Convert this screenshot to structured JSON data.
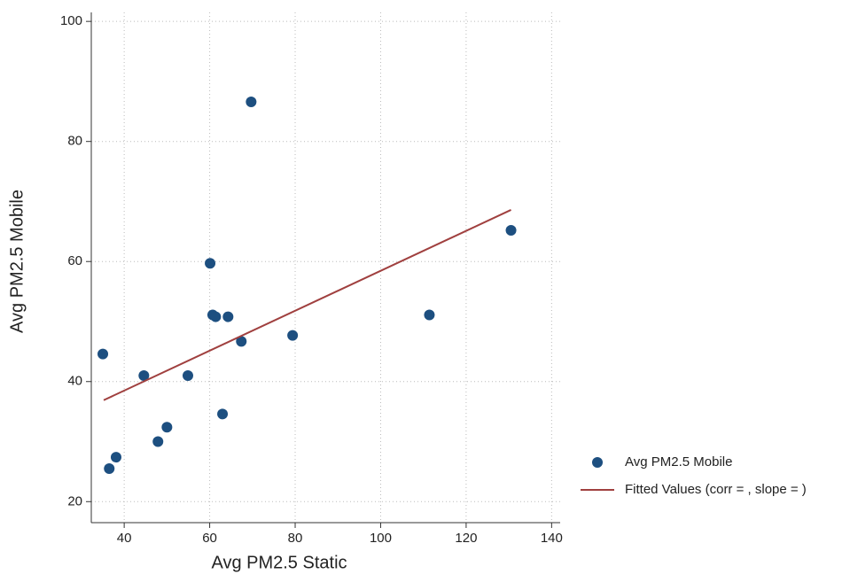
{
  "chart_data": {
    "type": "scatter",
    "x_label": "Avg PM2.5 Static",
    "y_label": "Avg PM2.5 Mobile",
    "xlim": [
      32.3,
      142
    ],
    "ylim": [
      16.5,
      101.5
    ],
    "xticks": [
      40,
      60,
      80,
      100,
      120,
      140
    ],
    "yticks": [
      20,
      40,
      60,
      80,
      100
    ],
    "grid": true,
    "legend": "right",
    "series": [
      {
        "name": "Avg PM2.5 Mobile",
        "type": "scatter",
        "color": "#1d4f80",
        "x": [
          35.0,
          36.5,
          38.1,
          44.6,
          47.9,
          50.0,
          54.9,
          60.1,
          60.7,
          61.4,
          63.0,
          64.3,
          67.4,
          69.7,
          79.4,
          111.4,
          130.5
        ],
        "values": [
          44.6,
          25.5,
          27.4,
          41.0,
          30.0,
          32.4,
          41.0,
          59.7,
          51.1,
          50.8,
          34.6,
          50.8,
          46.7,
          86.6,
          47.7,
          51.1,
          65.2
        ]
      },
      {
        "name": "Fitted Values (corr = , slope = )",
        "type": "line",
        "color": "#a0403f",
        "x": [
          35.2,
          130.5
        ],
        "values": [
          36.9,
          68.6
        ]
      }
    ]
  }
}
